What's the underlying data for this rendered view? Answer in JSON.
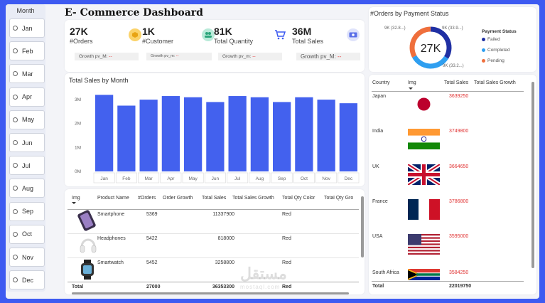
{
  "dashboard_title": "E- Commerce Dashboard",
  "month_slicer": {
    "title": "Month",
    "months": [
      "Jan",
      "Feb",
      "Mar",
      "Apr",
      "May",
      "Jun",
      "Jul",
      "Aug",
      "Sep",
      "Oct",
      "Nov",
      "Dec"
    ]
  },
  "kpis": [
    {
      "value": "27K",
      "label": "#Orders",
      "icon": "box-icon",
      "growth_label": "Growth pv_M:",
      "growth_value": "--"
    },
    {
      "value": "1K",
      "label": "#Customer",
      "icon": "people-icon",
      "growth_label": "Growth pv_m:",
      "growth_value": "--"
    },
    {
      "value": "81K",
      "label": "Total Quantity",
      "icon": "cart-icon",
      "growth_label": "Growth pv_m:",
      "growth_value": "--"
    },
    {
      "value": "36M",
      "label": "Total Sales",
      "icon": "cash-icon",
      "growth_label": "Growth pv_M:",
      "growth_value": "--"
    }
  ],
  "chart_data": {
    "type": "bar",
    "title": "Total Sales by Month",
    "categories": [
      "Jan",
      "Feb",
      "Mar",
      "Apr",
      "May",
      "Jun",
      "Jul",
      "Aug",
      "Sep",
      "Oct",
      "Nov",
      "Dec"
    ],
    "values": [
      3.2,
      2.75,
      3.0,
      3.15,
      3.1,
      2.9,
      3.15,
      3.1,
      2.9,
      3.1,
      3.0,
      2.85
    ],
    "ylim": [
      0,
      3.3
    ],
    "yticks": [
      "0M",
      "1M",
      "2M",
      "3M"
    ],
    "color": "#4361ee"
  },
  "product_table": {
    "headers": [
      "Img",
      "Product Name",
      "#Orders",
      "Order Growth",
      "Total Sales",
      "Total Sales Growth",
      "Total Qty Color",
      "Total Qty Gro"
    ],
    "rows": [
      {
        "icon": "smartphone-icon",
        "name": "Smartphone",
        "orders": "5369",
        "sales": "11337900",
        "color": "Red"
      },
      {
        "icon": "headphones-icon",
        "name": "Headphones",
        "orders": "5422",
        "sales": "818000",
        "color": "Red"
      },
      {
        "icon": "smartwatch-icon",
        "name": "Smartwatch",
        "orders": "5452",
        "sales": "3258800",
        "color": "Red"
      }
    ],
    "total": {
      "label": "Total",
      "orders": "27000",
      "sales": "36353300",
      "color": "Red"
    }
  },
  "payment": {
    "title": "#Orders by Payment Status",
    "center_value": "27K",
    "legend_title": "Payment Status",
    "segments": [
      {
        "name": "Failed",
        "label": "9K (33.9...)",
        "share": 0.339,
        "color": "#1f2fa3"
      },
      {
        "name": "Completed",
        "label": "9K (33.2...)",
        "share": 0.332,
        "color": "#2f9ff0"
      },
      {
        "name": "Pending",
        "label": "9K (32.8...)",
        "share": 0.328,
        "color": "#ef6f3c"
      }
    ]
  },
  "country_table": {
    "headers": [
      "Country",
      "Img",
      "Total Sales",
      "Total Sales Growth"
    ],
    "rows": [
      {
        "country": "Japan",
        "flag": "japan-flag-icon",
        "sales": "3639250"
      },
      {
        "country": "India",
        "flag": "india-flag-icon",
        "sales": "3749800"
      },
      {
        "country": "UK",
        "flag": "uk-flag-icon",
        "sales": "3664650"
      },
      {
        "country": "France",
        "flag": "france-flag-icon",
        "sales": "3786800"
      },
      {
        "country": "USA",
        "flag": "usa-flag-icon",
        "sales": "3595000"
      },
      {
        "country": "South Africa",
        "flag": "south-africa-flag-icon",
        "sales": "3584250"
      }
    ],
    "total": {
      "label": "Total",
      "sales": "22019750"
    }
  },
  "watermark": {
    "text": "مستقل",
    "sub": "mostaql.com"
  }
}
